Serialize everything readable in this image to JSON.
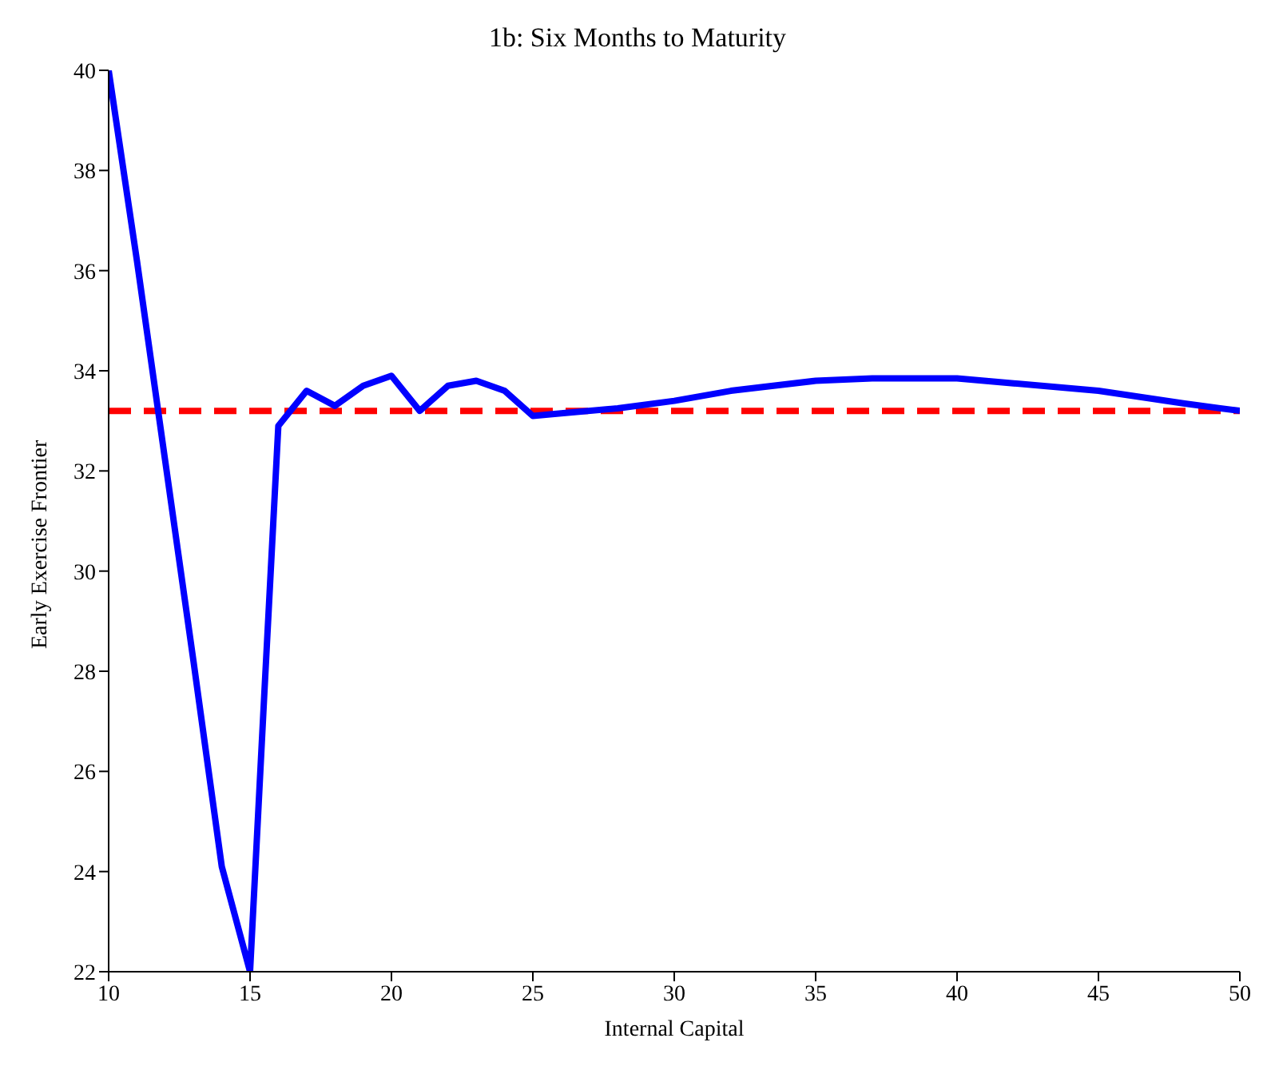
{
  "chart_data": {
    "type": "line",
    "title": "1b: Six Months to Maturity",
    "xlabel": "Internal Capital",
    "ylabel": "Early Exercise Frontier",
    "x": [
      10,
      11,
      12,
      13,
      14,
      15,
      15.5,
      16,
      17,
      18,
      19,
      20,
      21,
      22,
      23,
      24,
      25,
      26,
      28,
      30,
      32,
      35,
      37,
      40,
      42,
      45,
      48,
      50
    ],
    "series": [
      {
        "color": "#0000ff",
        "values": [
          40,
          36.2,
          32.2,
          28.2,
          24.1,
          22,
          27.5,
          32.9,
          33.6,
          33.3,
          33.7,
          33.9,
          33.2,
          33.7,
          33.8,
          33.6,
          33.1,
          33.15,
          33.25,
          33.4,
          33.6,
          33.8,
          33.85,
          33.85,
          33.75,
          33.6,
          33.35,
          33.2
        ]
      }
    ],
    "ref_lines": [
      {
        "axis": "y",
        "value": 33.2,
        "color": "#ff0000",
        "line_style": "dashed"
      }
    ],
    "xlim": [
      10,
      50
    ],
    "xticks": [
      10,
      15,
      20,
      25,
      30,
      35,
      40,
      45,
      50
    ],
    "ylim": [
      22,
      40
    ],
    "yticks": [
      22,
      24,
      26,
      28,
      30,
      32,
      34,
      36,
      38,
      40
    ],
    "grid": false,
    "legend": false,
    "marker": "none",
    "line_style": "solid"
  }
}
